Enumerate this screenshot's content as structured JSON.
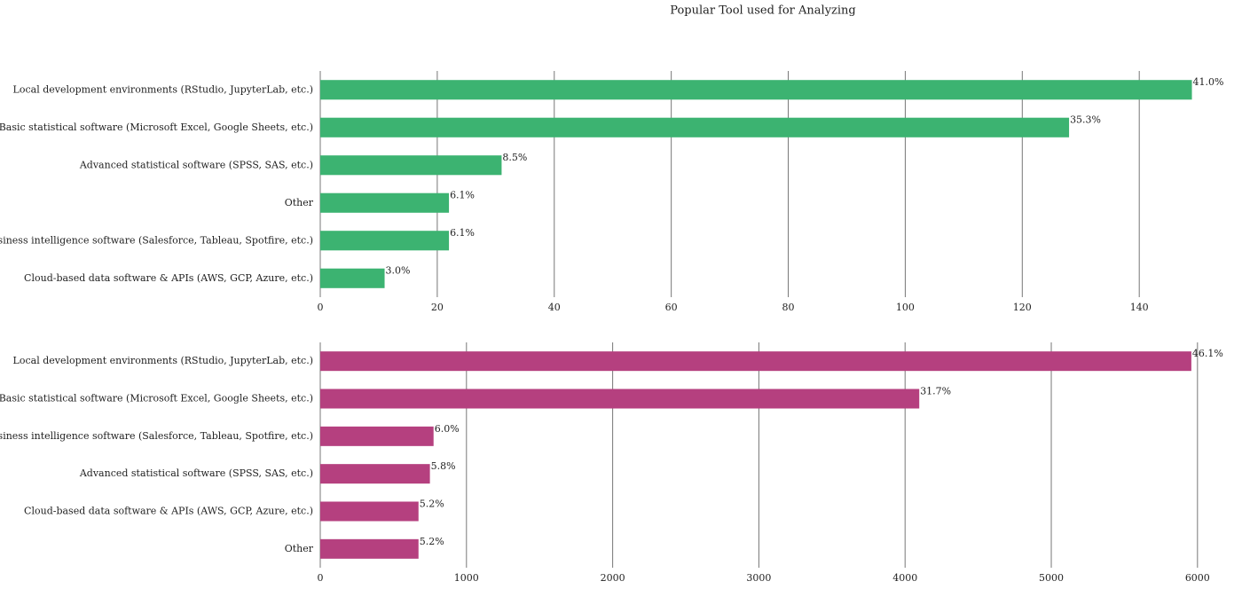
{
  "chart_data": [
    {
      "type": "barh",
      "title": "Popular Tool used for Analyzing",
      "color": "#3cb371",
      "categories": [
        "Local development environments (RStudio, JupyterLab, etc.)",
        "Basic statistical software (Microsoft Excel, Google Sheets, etc.)",
        "Advanced statistical software (SPSS, SAS, etc.)",
        "Other",
        "Business intelligence software (Salesforce, Tableau, Spotfire, etc.)",
        "Cloud-based data software & APIs (AWS, GCP, Azure, etc.)"
      ],
      "values": [
        149,
        128,
        31,
        22,
        22,
        11
      ],
      "value_labels": [
        "41.0%",
        "35.3%",
        "8.5%",
        "6.1%",
        "6.1%",
        "3.0%"
      ],
      "xlim": [
        0,
        156.5
      ],
      "xticks": [
        0,
        20,
        40,
        60,
        80,
        100,
        120,
        140
      ],
      "grid": true
    },
    {
      "type": "barh",
      "color": "#b5407f",
      "categories": [
        "Local development environments (RStudio, JupyterLab, etc.)",
        "Basic statistical software (Microsoft Excel, Google Sheets, etc.)",
        "Business intelligence software (Salesforce, Tableau, Spotfire, etc.)",
        "Advanced statistical software (SPSS, SAS, etc.)",
        "Cloud-based data software & APIs (AWS, GCP, Azure, etc.)",
        "Other"
      ],
      "values": [
        5958,
        4097,
        775,
        750,
        672,
        672
      ],
      "value_labels": [
        "46.1%",
        "31.7%",
        "6.0%",
        "5.8%",
        "5.2%",
        "5.2%"
      ],
      "xlim": [
        0,
        6262
      ],
      "xticks": [
        0,
        1000,
        2000,
        3000,
        4000,
        5000,
        6000
      ],
      "grid": true
    }
  ]
}
